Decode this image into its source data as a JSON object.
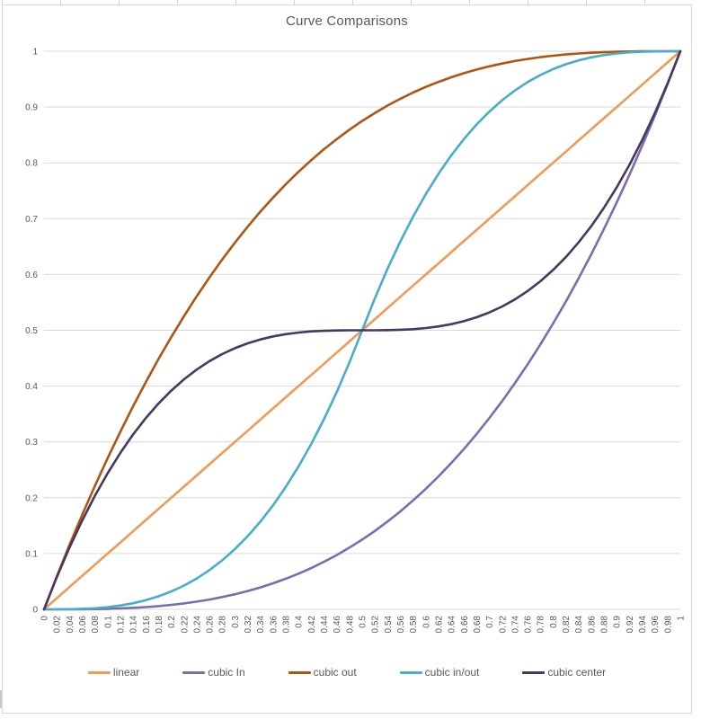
{
  "colors": {
    "background": "#FFFFFF",
    "frame_border": "#D9D9D9",
    "grid": "#D9D9D9",
    "text": "#595959",
    "sheet_tick": "#CFCFCF"
  },
  "chart_data": {
    "type": "line",
    "title": "Curve Comparisons",
    "xlabel": "",
    "ylabel": "",
    "xlim": [
      0,
      1
    ],
    "ylim": [
      0,
      1
    ],
    "grid": "horizontal",
    "legend_position": "bottom",
    "x": [
      0,
      0.02,
      0.04,
      0.06,
      0.08,
      0.1,
      0.12,
      0.14,
      0.16,
      0.18,
      0.2,
      0.22,
      0.24,
      0.26,
      0.28,
      0.3,
      0.32,
      0.34,
      0.36,
      0.38,
      0.4,
      0.42,
      0.44,
      0.46,
      0.48,
      0.5,
      0.52,
      0.54,
      0.56,
      0.58,
      0.6,
      0.62,
      0.64,
      0.66,
      0.68,
      0.7,
      0.72,
      0.74,
      0.76,
      0.78,
      0.8,
      0.82,
      0.84,
      0.86,
      0.88,
      0.9,
      0.92,
      0.94,
      0.96,
      0.98,
      1
    ],
    "x_tick_labels": [
      "0",
      "0.02",
      "0.04",
      "0.06",
      "0.08",
      "0.1",
      "0.12",
      "0.14",
      "0.16",
      "0.18",
      "0.2",
      "0.22",
      "0.24",
      "0.26",
      "0.28",
      "0.3",
      "0.32",
      "0.34",
      "0.36",
      "0.38",
      "0.4",
      "0.42",
      "0.44",
      "0.46",
      "0.48",
      "0.5",
      "0.52",
      "0.54",
      "0.56",
      "0.58",
      "0.6",
      "0.62",
      "0.64",
      "0.66",
      "0.68",
      "0.7",
      "0.72",
      "0.74",
      "0.76",
      "0.78",
      "0.8",
      "0.82",
      "0.84",
      "0.86",
      "0.88",
      "0.9",
      "0.92",
      "0.94",
      "0.96",
      "0.98",
      "1"
    ],
    "y_ticks": [
      0,
      0.1,
      0.2,
      0.3,
      0.4,
      0.5,
      0.6,
      0.7,
      0.8,
      0.9,
      1
    ],
    "y_tick_labels": [
      "0",
      "0.1",
      "0.2",
      "0.3",
      "0.4",
      "0.5",
      "0.6",
      "0.7",
      "0.8",
      "0.9",
      "1"
    ],
    "series": [
      {
        "name": "linear",
        "color": "#F09A56",
        "values": [
          0,
          0.02,
          0.04,
          0.06,
          0.08,
          0.1,
          0.12,
          0.14,
          0.16,
          0.18,
          0.2,
          0.22,
          0.24,
          0.26,
          0.28,
          0.3,
          0.32,
          0.34,
          0.36,
          0.38,
          0.4,
          0.42,
          0.44,
          0.46,
          0.48,
          0.5,
          0.52,
          0.54,
          0.56,
          0.58,
          0.6,
          0.62,
          0.64,
          0.66,
          0.68,
          0.7,
          0.72,
          0.74,
          0.76,
          0.78,
          0.8,
          0.82,
          0.84,
          0.86,
          0.88,
          0.9,
          0.92,
          0.94,
          0.96,
          0.98,
          1
        ]
      },
      {
        "name": "cubic In",
        "color": "#7E6BAB",
        "values": [
          0,
          0,
          0.0001,
          0.0002,
          0.0005,
          0.001,
          0.0017,
          0.0027,
          0.0041,
          0.0058,
          0.008,
          0.0106,
          0.0138,
          0.0176,
          0.022,
          0.027,
          0.0328,
          0.0393,
          0.0467,
          0.0549,
          0.064,
          0.0741,
          0.0852,
          0.0973,
          0.1106,
          0.125,
          0.1406,
          0.1575,
          0.1756,
          0.1951,
          0.216,
          0.2383,
          0.2621,
          0.2875,
          0.3144,
          0.343,
          0.3732,
          0.4052,
          0.439,
          0.4746,
          0.512,
          0.5514,
          0.5927,
          0.6361,
          0.6815,
          0.729,
          0.7787,
          0.8306,
          0.8847,
          0.9412,
          1
        ]
      },
      {
        "name": "cubic out",
        "color": "#B05510",
        "values": [
          0,
          0.0588,
          0.1153,
          0.1694,
          0.2213,
          0.271,
          0.3185,
          0.3639,
          0.4073,
          0.4486,
          0.488,
          0.5254,
          0.561,
          0.5948,
          0.6268,
          0.657,
          0.6856,
          0.7125,
          0.7379,
          0.7617,
          0.784,
          0.8049,
          0.8244,
          0.8425,
          0.8594,
          0.875,
          0.8894,
          0.9027,
          0.9148,
          0.9259,
          0.936,
          0.9451,
          0.9533,
          0.9607,
          0.9672,
          0.973,
          0.978,
          0.9824,
          0.9862,
          0.9894,
          0.992,
          0.9942,
          0.9959,
          0.9973,
          0.9983,
          0.999,
          0.9995,
          0.9998,
          0.9999,
          1,
          1
        ]
      },
      {
        "name": "cubic in/out",
        "color": "#47AEC8",
        "values": [
          0,
          0,
          0.0003,
          0.0009,
          0.002,
          0.004,
          0.0069,
          0.011,
          0.0164,
          0.0233,
          0.032,
          0.0426,
          0.0553,
          0.0703,
          0.0878,
          0.108,
          0.1311,
          0.1572,
          0.1866,
          0.2195,
          0.256,
          0.2964,
          0.3407,
          0.3893,
          0.4424,
          0.5,
          0.5576,
          0.6107,
          0.6593,
          0.7036,
          0.744,
          0.7805,
          0.8134,
          0.8428,
          0.8689,
          0.892,
          0.9122,
          0.9297,
          0.9447,
          0.9574,
          0.968,
          0.9767,
          0.9836,
          0.989,
          0.9931,
          0.996,
          0.998,
          0.9991,
          0.9997,
          1,
          1
        ]
      },
      {
        "name": "cubic center",
        "color": "#473860",
        "values": [
          0,
          0.0576,
          0.1107,
          0.1593,
          0.2036,
          0.244,
          0.2805,
          0.3134,
          0.3428,
          0.3689,
          0.392,
          0.4122,
          0.4297,
          0.4447,
          0.4574,
          0.468,
          0.4767,
          0.4836,
          0.489,
          0.4931,
          0.496,
          0.498,
          0.4991,
          0.4997,
          0.5,
          0.5,
          0.5,
          0.5003,
          0.5009,
          0.502,
          0.504,
          0.5069,
          0.511,
          0.5164,
          0.5233,
          0.532,
          0.5426,
          0.5553,
          0.5703,
          0.5878,
          0.608,
          0.6311,
          0.6573,
          0.6866,
          0.7195,
          0.756,
          0.7964,
          0.8407,
          0.8893,
          0.9424,
          1
        ]
      }
    ]
  }
}
